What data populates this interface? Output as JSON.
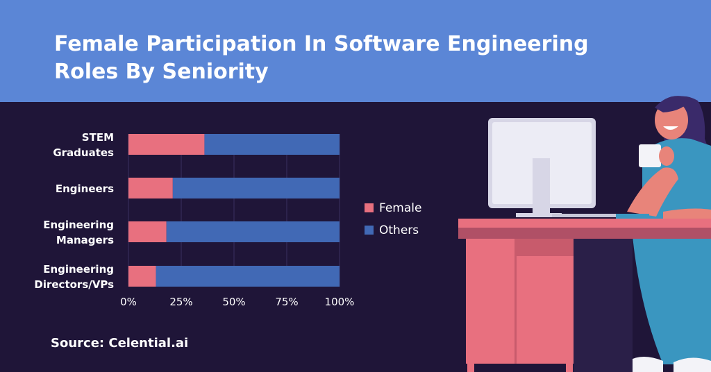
{
  "title": "Female Participation In Software Engineering Roles By Seniority",
  "source": "Source: Celential.ai",
  "colors": {
    "header_bg": "#5b86d6",
    "page_bg": "#1f1538",
    "female": "#e8707f",
    "others": "#4169b5",
    "grid": "#3a3060"
  },
  "chart_data": {
    "type": "bar",
    "orientation": "horizontal",
    "stacked": true,
    "percent_scale": true,
    "categories": [
      [
        "STEM",
        "Graduates"
      ],
      [
        "Engineers"
      ],
      [
        "Engineering",
        "Managers"
      ],
      [
        "Engineering",
        "Directors/VPs"
      ]
    ],
    "series": [
      {
        "name": "Female",
        "values": [
          36,
          21,
          18,
          13
        ],
        "color": "#e8707f"
      },
      {
        "name": "Others",
        "values": [
          64,
          79,
          82,
          87
        ],
        "color": "#4169b5"
      }
    ],
    "xlim": [
      0,
      100
    ],
    "xticks": [
      "0%",
      "25%",
      "50%",
      "75%",
      "100%"
    ],
    "grid": true,
    "legend_position": "right"
  }
}
